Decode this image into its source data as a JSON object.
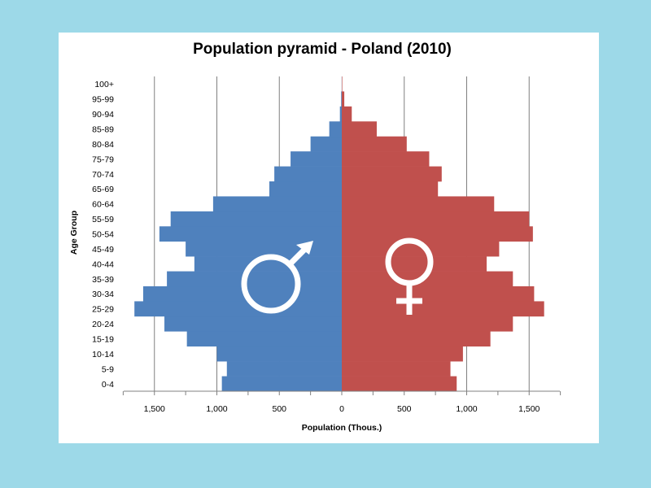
{
  "chart_data": {
    "type": "bar",
    "title": "Population pyramid - Poland (2010)",
    "xlabel": "Population (Thous.)",
    "ylabel": "Age Group",
    "categories": [
      "0-4",
      "5-9",
      "10-14",
      "15-19",
      "20-24",
      "25-29",
      "30-34",
      "35-39",
      "40-44",
      "45-49",
      "50-54",
      "55-59",
      "60-64",
      "65-69",
      "70-74",
      "75-79",
      "80-84",
      "85-89",
      "90-94",
      "95-99",
      "100+"
    ],
    "series": [
      {
        "color": "#4f81bd",
        "values": [
          960,
          920,
          1000,
          1240,
          1420,
          1660,
          1590,
          1400,
          1180,
          1250,
          1460,
          1370,
          1030,
          580,
          540,
          410,
          250,
          100,
          15,
          5,
          1
        ]
      },
      {
        "color": "#c0504d",
        "values": [
          920,
          870,
          970,
          1190,
          1370,
          1620,
          1540,
          1370,
          1160,
          1260,
          1530,
          1500,
          1220,
          770,
          800,
          700,
          520,
          280,
          80,
          20,
          4
        ]
      }
    ],
    "xticks": [
      "1,500",
      "1,000",
      "500",
      "0",
      "500",
      "1,000",
      "1,500"
    ],
    "xtick_values": [
      -1500,
      -1000,
      -500,
      0,
      500,
      1000,
      1500
    ],
    "xlim": [
      -1750,
      1750
    ],
    "grid": true,
    "legend": "none"
  },
  "icons": {
    "male": "male-symbol-icon",
    "female": "female-symbol-icon"
  }
}
